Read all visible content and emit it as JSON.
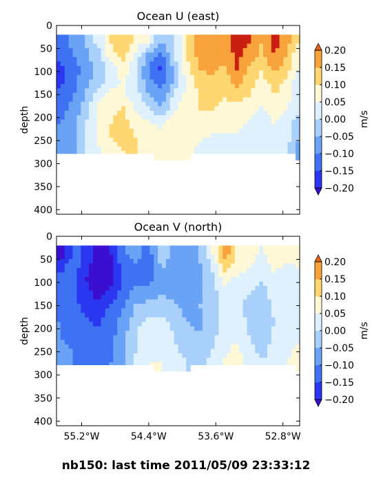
{
  "figure_title": "nb150: last time 2011/05/09 23:33:12",
  "palette": {
    "-0.20": "#2a36f0",
    "-0.15": "#3f72f2",
    "-0.10": "#6aa3f6",
    "-0.05": "#a9d0fb",
    "0.00": "#dff1fd",
    "0.05": "#fff8d6",
    "0.10": "#ffd772",
    "0.15": "#f7a23a",
    "0.20": "#ee6519",
    "over": "#c81f10",
    "under": "#3a0fd0"
  },
  "chart_data": [
    {
      "type": "heatmap",
      "subtype": "filled-contour",
      "title": "Ocean U (east)",
      "ylabel": "depth",
      "xlabel": "",
      "ylim": [
        410,
        0
      ],
      "xlim": [
        -55.5,
        -52.6
      ],
      "data_depth_range": [
        20,
        290
      ],
      "x_ticks": [
        "55.2°W",
        "54.4°W",
        "53.6°W",
        "52.8°W"
      ],
      "x_tick_values": [
        -55.2,
        -54.4,
        -53.6,
        -52.8
      ],
      "show_x_ticklabels": false,
      "y_ticks": [
        "0",
        "50",
        "100",
        "150",
        "200",
        "250",
        "300",
        "350",
        "400"
      ],
      "y_tick_values": [
        0,
        50,
        100,
        150,
        200,
        250,
        300,
        350,
        400
      ],
      "colorbar": {
        "label": "m/s",
        "levels": [
          -0.2,
          -0.15,
          -0.1,
          -0.05,
          0.0,
          0.05,
          0.1,
          0.15,
          0.2
        ],
        "tick_labels": [
          "−0.20",
          "−0.15",
          "−0.10",
          "−0.05",
          "0.00",
          "0.05",
          "0.10",
          "0.15",
          "0.20"
        ],
        "extend": "both"
      },
      "x_columns": [
        -55.45,
        -55.3,
        -55.15,
        -55.0,
        -54.85,
        -54.7,
        -54.55,
        -54.4,
        -54.25,
        -54.1,
        -53.95,
        -53.8,
        -53.65,
        -53.5,
        -53.35,
        -53.2,
        -53.05,
        -52.9,
        -52.75,
        -52.65
      ],
      "depth_rows": [
        35,
        65,
        95,
        125,
        155,
        185,
        215,
        245,
        270
      ],
      "values": [
        [
          -0.12,
          -0.08,
          -0.05,
          0.02,
          0.1,
          0.14,
          0.08,
          0.05,
          -0.05,
          -0.02,
          0.12,
          0.18,
          0.19,
          0.18,
          0.22,
          0.2,
          0.15,
          0.22,
          0.18,
          0.1
        ],
        [
          -0.14,
          -0.1,
          -0.06,
          -0.02,
          0.08,
          0.12,
          0.03,
          -0.08,
          -0.12,
          0.0,
          0.1,
          0.17,
          0.18,
          0.17,
          0.21,
          0.18,
          0.14,
          0.2,
          0.15,
          0.08
        ],
        [
          -0.16,
          -0.12,
          -0.08,
          -0.04,
          0.02,
          0.08,
          0.0,
          -0.1,
          -0.16,
          -0.05,
          0.08,
          0.15,
          0.16,
          0.14,
          0.2,
          0.14,
          0.1,
          0.16,
          0.12,
          0.05
        ],
        [
          -0.16,
          -0.12,
          -0.06,
          -0.02,
          0.02,
          0.06,
          0.0,
          -0.08,
          -0.12,
          -0.04,
          0.06,
          0.12,
          0.14,
          0.12,
          0.16,
          0.12,
          0.08,
          0.12,
          0.09,
          0.03
        ],
        [
          -0.14,
          -0.1,
          -0.04,
          0.04,
          0.08,
          0.06,
          0.03,
          -0.04,
          -0.08,
          0.02,
          0.06,
          0.1,
          0.12,
          0.1,
          0.12,
          0.1,
          0.06,
          0.1,
          0.07,
          0.02
        ],
        [
          -0.12,
          -0.08,
          -0.02,
          0.06,
          0.09,
          0.11,
          0.05,
          0.02,
          -0.04,
          0.04,
          0.08,
          0.1,
          0.1,
          0.08,
          0.08,
          0.06,
          0.04,
          0.07,
          0.05,
          0.01
        ],
        [
          -0.1,
          -0.06,
          0.0,
          0.06,
          0.1,
          0.12,
          0.08,
          0.06,
          0.04,
          0.08,
          0.1,
          0.1,
          0.07,
          0.06,
          0.06,
          0.04,
          0.02,
          0.05,
          0.03,
          -0.02
        ],
        [
          -0.1,
          -0.07,
          0.02,
          0.06,
          0.1,
          0.12,
          0.1,
          0.08,
          0.06,
          0.1,
          0.08,
          0.06,
          0.04,
          0.04,
          0.04,
          0.03,
          0.02,
          0.03,
          0.02,
          -0.04
        ],
        [
          -0.1,
          -0.08,
          0.02,
          0.04,
          0.08,
          0.1,
          0.1,
          0.08,
          0.06,
          0.08,
          0.06,
          0.04,
          0.03,
          0.04,
          0.03,
          0.02,
          0.02,
          0.03,
          0.01,
          -0.06
        ]
      ]
    },
    {
      "type": "heatmap",
      "subtype": "filled-contour",
      "title": "Ocean V (north)",
      "ylabel": "depth",
      "xlabel": "",
      "ylim": [
        410,
        0
      ],
      "xlim": [
        -55.5,
        -52.6
      ],
      "data_depth_range": [
        20,
        290
      ],
      "x_ticks": [
        "55.2°W",
        "54.4°W",
        "53.6°W",
        "52.8°W"
      ],
      "x_tick_values": [
        -55.2,
        -54.4,
        -53.6,
        -52.8
      ],
      "show_x_ticklabels": true,
      "y_ticks": [
        "0",
        "50",
        "100",
        "150",
        "200",
        "250",
        "300",
        "350",
        "400"
      ],
      "y_tick_values": [
        0,
        50,
        100,
        150,
        200,
        250,
        300,
        350,
        400
      ],
      "colorbar": {
        "label": "m/s",
        "levels": [
          -0.2,
          -0.15,
          -0.1,
          -0.05,
          0.0,
          0.05,
          0.1,
          0.15,
          0.2
        ],
        "tick_labels": [
          "−0.20",
          "−0.15",
          "−0.10",
          "−0.05",
          "0.00",
          "0.05",
          "0.10",
          "0.15",
          "0.20"
        ],
        "extend": "both"
      },
      "x_columns": [
        -55.45,
        -55.3,
        -55.15,
        -55.0,
        -54.85,
        -54.7,
        -54.55,
        -54.4,
        -54.25,
        -54.1,
        -53.95,
        -53.8,
        -53.65,
        -53.5,
        -53.35,
        -53.2,
        -53.05,
        -52.9,
        -52.75,
        -52.65
      ],
      "depth_rows": [
        35,
        65,
        95,
        125,
        155,
        185,
        215,
        245,
        270
      ],
      "values": [
        [
          -0.24,
          -0.14,
          -0.16,
          -0.22,
          -0.2,
          -0.1,
          -0.08,
          -0.12,
          -0.02,
          -0.06,
          -0.08,
          -0.05,
          0.04,
          0.18,
          0.1,
          0.08,
          0.04,
          0.1,
          0.06,
          0.08
        ],
        [
          -0.16,
          -0.12,
          -0.18,
          -0.24,
          -0.22,
          -0.12,
          -0.1,
          -0.14,
          -0.04,
          -0.08,
          -0.1,
          -0.06,
          0.0,
          0.12,
          0.08,
          0.06,
          0.02,
          0.06,
          0.04,
          0.05
        ],
        [
          -0.14,
          -0.14,
          -0.2,
          -0.25,
          -0.22,
          -0.14,
          -0.12,
          -0.12,
          -0.06,
          -0.08,
          -0.1,
          -0.07,
          -0.02,
          0.06,
          0.04,
          0.02,
          0.0,
          0.04,
          0.02,
          0.03
        ],
        [
          -0.12,
          -0.14,
          -0.18,
          -0.22,
          -0.18,
          -0.12,
          -0.08,
          -0.08,
          -0.05,
          -0.06,
          -0.08,
          -0.06,
          -0.03,
          0.04,
          0.02,
          0.0,
          -0.02,
          0.02,
          0.01,
          0.02
        ],
        [
          -0.12,
          -0.14,
          -0.16,
          -0.18,
          -0.14,
          -0.1,
          -0.04,
          -0.02,
          -0.03,
          -0.04,
          -0.06,
          -0.05,
          -0.04,
          0.02,
          0.02,
          -0.02,
          -0.03,
          0.01,
          0.0,
          0.01
        ],
        [
          -0.1,
          -0.12,
          -0.14,
          -0.16,
          -0.12,
          -0.08,
          -0.02,
          0.02,
          0.02,
          -0.02,
          -0.05,
          -0.06,
          -0.03,
          0.02,
          0.03,
          -0.01,
          -0.04,
          0.0,
          0.0,
          0.02
        ],
        [
          -0.1,
          -0.12,
          -0.12,
          -0.14,
          -0.12,
          -0.06,
          0.0,
          0.04,
          0.03,
          0.0,
          -0.04,
          -0.05,
          -0.02,
          0.03,
          0.04,
          0.0,
          -0.03,
          0.01,
          0.02,
          0.04
        ],
        [
          -0.08,
          -0.1,
          -0.12,
          -0.14,
          -0.12,
          -0.06,
          0.0,
          0.05,
          0.04,
          0.01,
          -0.02,
          -0.03,
          0.0,
          0.04,
          0.06,
          0.02,
          -0.02,
          0.02,
          0.03,
          0.06
        ],
        [
          -0.06,
          -0.1,
          -0.12,
          -0.12,
          -0.1,
          -0.06,
          0.01,
          0.05,
          0.05,
          0.02,
          0.0,
          -0.02,
          0.01,
          0.05,
          0.08,
          0.03,
          0.0,
          0.03,
          0.04,
          0.08
        ]
      ]
    }
  ]
}
